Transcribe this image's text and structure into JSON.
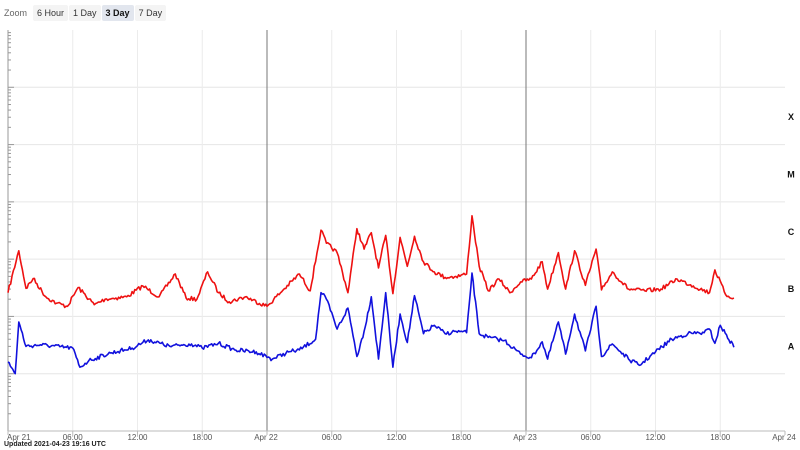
{
  "zoom": {
    "label": "Zoom",
    "options": [
      "6 Hour",
      "1 Day",
      "3 Day",
      "7 Day"
    ],
    "selected": "3 Day"
  },
  "updated": "Updated 2021-04-23 19:16 UTC",
  "chart_data": {
    "type": "line",
    "x_axis": {
      "start": "2021-04-21 00:00",
      "end": "2021-04-24 00:00",
      "tick_labels": [
        "Apr 21",
        "06:00",
        "12:00",
        "18:00",
        "Apr 22",
        "06:00",
        "12:00",
        "18:00",
        "Apr 23",
        "06:00",
        "12:00",
        "18:00",
        "Apr 24"
      ],
      "day_divider_labels": [
        "Apr 22",
        "Apr 23"
      ]
    },
    "y_axis": {
      "scale": "log",
      "unit": "W/m²",
      "range": [
        1e-09,
        0.01
      ],
      "flare_class_labels": [
        {
          "label": "A",
          "flux": 3e-08
        },
        {
          "label": "B",
          "flux": 3e-07
        },
        {
          "label": "C",
          "flux": 3e-06
        },
        {
          "label": "M",
          "flux": 3e-05
        },
        {
          "label": "X",
          "flux": 0.0003
        }
      ]
    },
    "grid": true,
    "legend": "none",
    "series": [
      {
        "color": "#ee1111",
        "times": [
          "2021-04-21 00:00",
          "2021-04-21 01:00",
          "2021-04-21 01:40",
          "2021-04-21 02:20",
          "2021-04-21 03:30",
          "2021-04-21 04:30",
          "2021-04-21 05:30",
          "2021-04-21 06:30",
          "2021-04-21 08:00",
          "2021-04-21 09:00",
          "2021-04-21 10:00",
          "2021-04-21 11:00",
          "2021-04-21 12:30",
          "2021-04-21 14:00",
          "2021-04-21 15:30",
          "2021-04-21 16:30",
          "2021-04-21 17:30",
          "2021-04-21 18:30",
          "2021-04-21 19:30",
          "2021-04-21 20:30",
          "2021-04-21 22:00",
          "2021-04-22 00:00",
          "2021-04-22 01:30",
          "2021-04-22 03:00",
          "2021-04-22 04:00",
          "2021-04-22 05:00",
          "2021-04-22 05:30",
          "2021-04-22 06:30",
          "2021-04-22 07:30",
          "2021-04-22 08:20",
          "2021-04-22 09:00",
          "2021-04-22 09:40",
          "2021-04-22 10:20",
          "2021-04-22 11:00",
          "2021-04-22 11:40",
          "2021-04-22 12:20",
          "2021-04-22 13:00",
          "2021-04-22 13:40",
          "2021-04-22 14:30",
          "2021-04-22 15:30",
          "2021-04-22 16:30",
          "2021-04-22 17:30",
          "2021-04-22 18:30",
          "2021-04-22 19:00",
          "2021-04-22 19:40",
          "2021-04-22 20:30",
          "2021-04-22 21:30",
          "2021-04-22 22:30",
          "2021-04-22 23:30",
          "2021-04-23 00:30",
          "2021-04-23 01:30",
          "2021-04-23 02:00",
          "2021-04-23 03:00",
          "2021-04-23 03:40",
          "2021-04-23 04:30",
          "2021-04-23 05:30",
          "2021-04-23 06:30",
          "2021-04-23 07:00",
          "2021-04-23 08:00",
          "2021-04-23 09:30",
          "2021-04-23 11:00",
          "2021-04-23 12:30",
          "2021-04-23 14:00",
          "2021-04-23 15:30",
          "2021-04-23 17:00",
          "2021-04-23 17:30",
          "2021-04-23 18:30",
          "2021-04-23 19:16"
        ],
        "values": [
          2.6e-07,
          1.4e-06,
          3.1e-07,
          4.6e-07,
          2.2e-07,
          1.7e-07,
          1.5e-07,
          3.2e-07,
          1.6e-07,
          2e-07,
          2.1e-07,
          2.2e-07,
          3.4e-07,
          2.2e-07,
          5.5e-07,
          2.1e-07,
          2e-07,
          6e-07,
          2.6e-07,
          1.8e-07,
          2.2e-07,
          1.5e-07,
          2.9e-07,
          5.5e-07,
          2.8e-07,
          3.2e-06,
          1.9e-06,
          1.3e-06,
          2.6e-07,
          3.4e-06,
          1.5e-06,
          2.9e-06,
          7e-07,
          2.6e-06,
          2.5e-07,
          2.4e-06,
          7.5e-07,
          2.5e-06,
          9e-07,
          6e-07,
          4.8e-07,
          5e-07,
          5.5e-07,
          5.7e-06,
          7.5e-07,
          2.8e-07,
          4.5e-07,
          2.6e-07,
          4e-07,
          4.5e-07,
          9e-07,
          3e-07,
          1.3e-06,
          3e-07,
          1.4e-06,
          3.5e-07,
          1.5e-06,
          2.9e-07,
          6e-07,
          3e-07,
          2.8e-07,
          3e-07,
          4.5e-07,
          3.4e-07,
          2.6e-07,
          6.5e-07,
          2.4e-07,
          2.1e-07
        ]
      },
      {
        "color": "#1111dd",
        "times": [
          "2021-04-21 00:00",
          "2021-04-21 00:40",
          "2021-04-21 01:00",
          "2021-04-21 01:40",
          "2021-04-21 03:00",
          "2021-04-21 06:00",
          "2021-04-21 06:40",
          "2021-04-21 07:30",
          "2021-04-21 09:30",
          "2021-04-21 11:30",
          "2021-04-21 13:00",
          "2021-04-21 15:00",
          "2021-04-21 17:00",
          "2021-04-21 18:00",
          "2021-04-21 19:30",
          "2021-04-21 21:00",
          "2021-04-21 23:00",
          "2021-04-22 00:30",
          "2021-04-22 02:00",
          "2021-04-22 03:00",
          "2021-04-22 04:30",
          "2021-04-22 05:00",
          "2021-04-22 05:30",
          "2021-04-22 06:30",
          "2021-04-22 07:30",
          "2021-04-22 08:20",
          "2021-04-22 09:00",
          "2021-04-22 09:40",
          "2021-04-22 10:20",
          "2021-04-22 11:00",
          "2021-04-22 11:40",
          "2021-04-22 12:20",
          "2021-04-22 13:00",
          "2021-04-22 13:40",
          "2021-04-22 14:30",
          "2021-04-22 15:30",
          "2021-04-22 16:30",
          "2021-04-22 17:30",
          "2021-04-22 18:30",
          "2021-04-22 19:00",
          "2021-04-22 19:40",
          "2021-04-22 20:30",
          "2021-04-22 22:00",
          "2021-04-22 23:30",
          "2021-04-23 00:30",
          "2021-04-23 01:30",
          "2021-04-23 02:00",
          "2021-04-23 03:00",
          "2021-04-23 03:40",
          "2021-04-23 04:30",
          "2021-04-23 05:30",
          "2021-04-23 06:30",
          "2021-04-23 07:00",
          "2021-04-23 08:00",
          "2021-04-23 09:30",
          "2021-04-23 10:30",
          "2021-04-23 12:00",
          "2021-04-23 13:30",
          "2021-04-23 15:00",
          "2021-04-23 16:30",
          "2021-04-23 17:00",
          "2021-04-23 17:30",
          "2021-04-23 18:00",
          "2021-04-23 19:16"
        ],
        "values": [
          1.6e-08,
          1e-08,
          8e-08,
          3e-08,
          3.2e-08,
          2.8e-08,
          1.3e-08,
          1.7e-08,
          2.3e-08,
          2.8e-08,
          3.9e-08,
          3e-08,
          3.3e-08,
          2.8e-08,
          3.4e-08,
          2.6e-08,
          2.4e-08,
          1.8e-08,
          2.4e-08,
          2.6e-08,
          4e-08,
          2.6e-07,
          2e-07,
          6e-08,
          1.4e-07,
          2e-08,
          5.5e-08,
          2.2e-07,
          1.8e-08,
          2.6e-07,
          1.3e-08,
          1.1e-07,
          3.5e-08,
          2.3e-07,
          5e-08,
          7e-08,
          5e-08,
          5.5e-08,
          5.2e-08,
          5.7e-07,
          5e-08,
          4.3e-08,
          3.8e-08,
          2.2e-08,
          1.9e-08,
          3.6e-08,
          1.8e-08,
          8e-08,
          2.2e-08,
          1.1e-07,
          2.5e-08,
          1.5e-07,
          2e-08,
          3.3e-08,
          1.8e-08,
          1.4e-08,
          2.4e-08,
          4e-08,
          5e-08,
          5.2e-08,
          6e-08,
          3.4e-08,
          7e-08,
          2.9e-08
        ]
      }
    ]
  }
}
